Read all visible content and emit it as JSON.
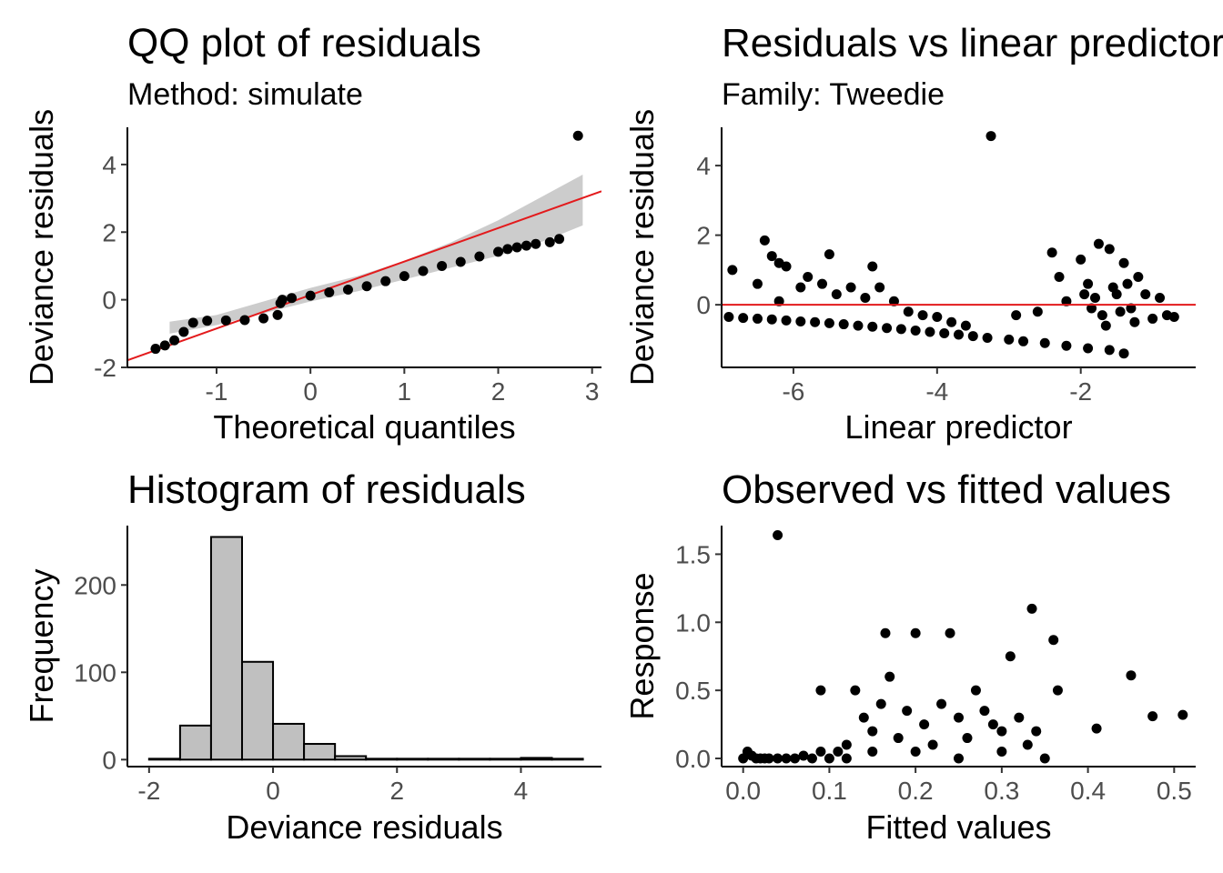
{
  "colors": {
    "point": "#000000",
    "refline": "#e31a1c",
    "band": "#cccccc",
    "bar_fill": "#c0c0c0",
    "bar_stroke": "#000000",
    "tick_text": "#4d4d4d"
  },
  "chart_data": [
    {
      "id": "qq",
      "type": "scatter",
      "title": "QQ plot of residuals",
      "subtitle": "Method: simulate",
      "xlabel": "Theoretical quantiles",
      "ylabel": "Deviance residuals",
      "xlim": [
        -1.95,
        3.1
      ],
      "ylim": [
        -2.0,
        5.1
      ],
      "xticks": [
        -1,
        0,
        1,
        2,
        3
      ],
      "yticks": [
        -2,
        0,
        2,
        4
      ],
      "ref_line": {
        "intercept": 0.14,
        "slope": 0.99
      },
      "band": {
        "x": [
          -1.5,
          -1.0,
          -0.5,
          0.0,
          0.5,
          1.0,
          1.5,
          2.0,
          2.5,
          2.9
        ],
        "lower": [
          -1.0,
          -0.75,
          -0.4,
          -0.05,
          0.25,
          0.6,
          0.95,
          1.3,
          1.75,
          2.2
        ],
        "upper": [
          -0.65,
          -0.45,
          -0.05,
          0.35,
          0.7,
          1.15,
          1.7,
          2.35,
          3.1,
          3.7
        ]
      },
      "points_note": "sorted residuals vs normal quantiles",
      "points": [
        [
          -1.65,
          -1.45
        ],
        [
          -1.55,
          -1.35
        ],
        [
          -1.45,
          -1.2
        ],
        [
          -1.35,
          -0.95
        ],
        [
          -1.25,
          -0.68
        ],
        [
          -1.1,
          -0.62
        ],
        [
          -0.9,
          -0.61
        ],
        [
          -0.7,
          -0.6
        ],
        [
          -0.5,
          -0.55
        ],
        [
          -0.35,
          -0.45
        ],
        [
          -0.32,
          -0.1
        ],
        [
          -0.3,
          0.0
        ],
        [
          -0.2,
          0.05
        ],
        [
          0.0,
          0.12
        ],
        [
          0.2,
          0.22
        ],
        [
          0.4,
          0.3
        ],
        [
          0.6,
          0.4
        ],
        [
          0.8,
          0.55
        ],
        [
          1.0,
          0.7
        ],
        [
          1.2,
          0.85
        ],
        [
          1.4,
          1.0
        ],
        [
          1.6,
          1.12
        ],
        [
          1.8,
          1.28
        ],
        [
          2.0,
          1.42
        ],
        [
          2.1,
          1.5
        ],
        [
          2.2,
          1.55
        ],
        [
          2.3,
          1.6
        ],
        [
          2.4,
          1.65
        ],
        [
          2.55,
          1.7
        ],
        [
          2.65,
          1.8
        ],
        [
          2.85,
          4.85
        ]
      ]
    },
    {
      "id": "rvlp",
      "type": "scatter",
      "title": "Residuals vs linear predictor",
      "subtitle": "Family: Tweedie",
      "xlabel": "Linear predictor",
      "ylabel": "Deviance residuals",
      "xlim": [
        -7.0,
        -0.4
      ],
      "ylim": [
        -1.8,
        5.1
      ],
      "xticks": [
        -6,
        -4,
        -2
      ],
      "yticks": [
        0,
        2,
        4
      ],
      "hline": 0,
      "points": [
        [
          -6.9,
          -0.35
        ],
        [
          -6.7,
          -0.38
        ],
        [
          -6.5,
          -0.4
        ],
        [
          -6.3,
          -0.42
        ],
        [
          -6.1,
          -0.45
        ],
        [
          -5.9,
          -0.48
        ],
        [
          -5.7,
          -0.5
        ],
        [
          -5.5,
          -0.53
        ],
        [
          -5.3,
          -0.56
        ],
        [
          -5.1,
          -0.6
        ],
        [
          -4.9,
          -0.63
        ],
        [
          -4.7,
          -0.67
        ],
        [
          -4.5,
          -0.7
        ],
        [
          -4.3,
          -0.74
        ],
        [
          -4.1,
          -0.78
        ],
        [
          -3.9,
          -0.82
        ],
        [
          -3.7,
          -0.86
        ],
        [
          -3.5,
          -0.9
        ],
        [
          -3.3,
          -0.95
        ],
        [
          -3.0,
          -1.0
        ],
        [
          -2.8,
          -1.05
        ],
        [
          -2.5,
          -1.1
        ],
        [
          -2.2,
          -1.18
        ],
        [
          -1.9,
          -1.25
        ],
        [
          -1.6,
          -1.3
        ],
        [
          -1.4,
          -1.4
        ],
        [
          -6.85,
          1.0
        ],
        [
          -6.4,
          1.85
        ],
        [
          -6.3,
          1.4
        ],
        [
          -6.2,
          1.2
        ],
        [
          -6.1,
          1.1
        ],
        [
          -6.5,
          0.6
        ],
        [
          -6.2,
          0.1
        ],
        [
          -5.9,
          0.5
        ],
        [
          -5.8,
          0.8
        ],
        [
          -5.5,
          1.45
        ],
        [
          -5.6,
          0.6
        ],
        [
          -5.4,
          0.3
        ],
        [
          -5.2,
          0.5
        ],
        [
          -5.0,
          0.2
        ],
        [
          -4.9,
          1.1
        ],
        [
          -4.8,
          0.5
        ],
        [
          -4.6,
          0.1
        ],
        [
          -4.4,
          -0.2
        ],
        [
          -4.2,
          -0.3
        ],
        [
          -4.0,
          -0.35
        ],
        [
          -3.8,
          -0.5
        ],
        [
          -3.6,
          -0.6
        ],
        [
          -3.25,
          4.85
        ],
        [
          -2.9,
          -0.3
        ],
        [
          -2.6,
          -0.2
        ],
        [
          -2.4,
          1.5
        ],
        [
          -2.3,
          0.8
        ],
        [
          -2.2,
          0.1
        ],
        [
          -2.0,
          1.3
        ],
        [
          -1.9,
          0.6
        ],
        [
          -1.8,
          0.2
        ],
        [
          -1.75,
          1.75
        ],
        [
          -1.7,
          -0.3
        ],
        [
          -1.6,
          1.6
        ],
        [
          -1.5,
          0.3
        ],
        [
          -1.4,
          1.2
        ],
        [
          -1.3,
          -0.1
        ],
        [
          -1.2,
          0.8
        ],
        [
          -1.1,
          0.3
        ],
        [
          -1.0,
          -0.4
        ],
        [
          -0.9,
          0.2
        ],
        [
          -0.8,
          -0.3
        ],
        [
          -0.7,
          -0.35
        ],
        [
          -1.65,
          -0.6
        ],
        [
          -1.55,
          0.5
        ],
        [
          -1.45,
          -0.2
        ],
        [
          -1.35,
          0.6
        ],
        [
          -1.25,
          -0.5
        ],
        [
          -1.85,
          -0.1
        ],
        [
          -1.95,
          0.3
        ]
      ]
    },
    {
      "id": "hist",
      "type": "bar",
      "title": "Histogram of residuals",
      "xlabel": "Deviance residuals",
      "ylabel": "Frequency",
      "xlim": [
        -2.35,
        5.3
      ],
      "ylim": [
        -8,
        268
      ],
      "xticks": [
        -2,
        0,
        2,
        4
      ],
      "yticks": [
        0,
        100,
        200
      ],
      "bin_edges": [
        -2.0,
        -1.5,
        -1.0,
        -0.5,
        0.0,
        0.5,
        1.0,
        1.5,
        2.0,
        2.5,
        3.0,
        3.5,
        4.0,
        4.5,
        5.0
      ],
      "values": [
        1,
        39,
        255,
        112,
        41,
        18,
        4,
        1,
        1,
        1,
        1,
        1,
        2,
        1
      ]
    },
    {
      "id": "ovf",
      "type": "scatter",
      "title": "Observed vs fitted values",
      "xlabel": "Fitted values",
      "ylabel": "Response",
      "xlim": [
        -0.025,
        0.525
      ],
      "ylim": [
        -0.06,
        1.71
      ],
      "xticks": [
        0.0,
        0.1,
        0.2,
        0.3,
        0.4,
        0.5
      ],
      "xtick_labels": [
        "0.0",
        "0.1",
        "0.2",
        "0.3",
        "0.4",
        "0.5"
      ],
      "yticks": [
        0.0,
        0.5,
        1.0,
        1.5
      ],
      "ytick_labels": [
        "0.0",
        "0.5",
        "1.0",
        "1.5"
      ],
      "points": [
        [
          0.0,
          0.0
        ],
        [
          0.005,
          0.05
        ],
        [
          0.01,
          0.02
        ],
        [
          0.015,
          0.0
        ],
        [
          0.02,
          0.0
        ],
        [
          0.025,
          0.0
        ],
        [
          0.03,
          0.0
        ],
        [
          0.04,
          0.0
        ],
        [
          0.05,
          0.0
        ],
        [
          0.06,
          0.0
        ],
        [
          0.07,
          0.02
        ],
        [
          0.08,
          0.0
        ],
        [
          0.09,
          0.05
        ],
        [
          0.1,
          0.0
        ],
        [
          0.11,
          0.05
        ],
        [
          0.12,
          0.1
        ],
        [
          0.04,
          1.64
        ],
        [
          0.09,
          0.5
        ],
        [
          0.13,
          0.5
        ],
        [
          0.14,
          0.3
        ],
        [
          0.15,
          0.2
        ],
        [
          0.16,
          0.4
        ],
        [
          0.165,
          0.92
        ],
        [
          0.17,
          0.6
        ],
        [
          0.18,
          0.15
        ],
        [
          0.19,
          0.35
        ],
        [
          0.2,
          0.92
        ],
        [
          0.21,
          0.25
        ],
        [
          0.22,
          0.1
        ],
        [
          0.23,
          0.4
        ],
        [
          0.24,
          0.92
        ],
        [
          0.25,
          0.3
        ],
        [
          0.26,
          0.15
        ],
        [
          0.27,
          0.5
        ],
        [
          0.28,
          0.35
        ],
        [
          0.29,
          0.25
        ],
        [
          0.3,
          0.2
        ],
        [
          0.31,
          0.75
        ],
        [
          0.32,
          0.3
        ],
        [
          0.33,
          0.1
        ],
        [
          0.335,
          1.1
        ],
        [
          0.34,
          0.2
        ],
        [
          0.35,
          0.0
        ],
        [
          0.36,
          0.87
        ],
        [
          0.365,
          0.5
        ],
        [
          0.41,
          0.22
        ],
        [
          0.45,
          0.61
        ],
        [
          0.475,
          0.31
        ],
        [
          0.51,
          0.32
        ],
        [
          0.2,
          0.05
        ],
        [
          0.25,
          0.0
        ],
        [
          0.3,
          0.05
        ],
        [
          0.15,
          0.05
        ],
        [
          0.12,
          0.0
        ]
      ]
    }
  ]
}
